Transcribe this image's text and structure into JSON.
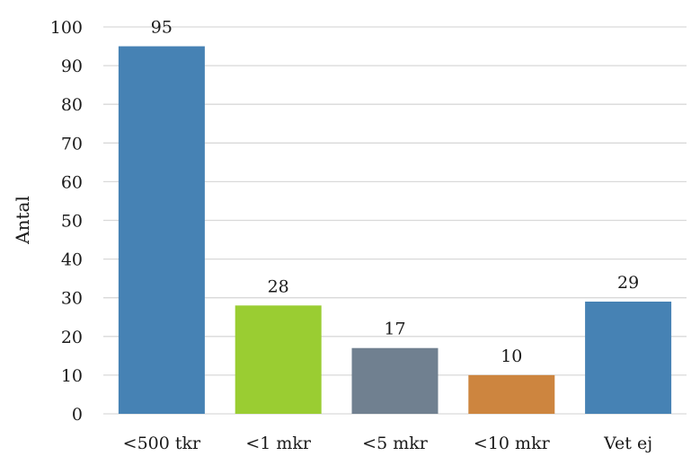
{
  "chart_data": {
    "type": "bar",
    "title": "",
    "xlabel": "",
    "ylabel": "Antal",
    "ylim": [
      0,
      100
    ],
    "ytick_step": 10,
    "grid": true,
    "legend": "none",
    "categories": [
      "<500 tkr",
      "<1 mkr",
      "<5 mkr",
      "<10 mkr",
      "Vet ej"
    ],
    "values": [
      95,
      28,
      17,
      10,
      29
    ],
    "colors": [
      "#4682b4",
      "#9acd32",
      "#708090",
      "#cd853f",
      "#4682b4"
    ]
  }
}
